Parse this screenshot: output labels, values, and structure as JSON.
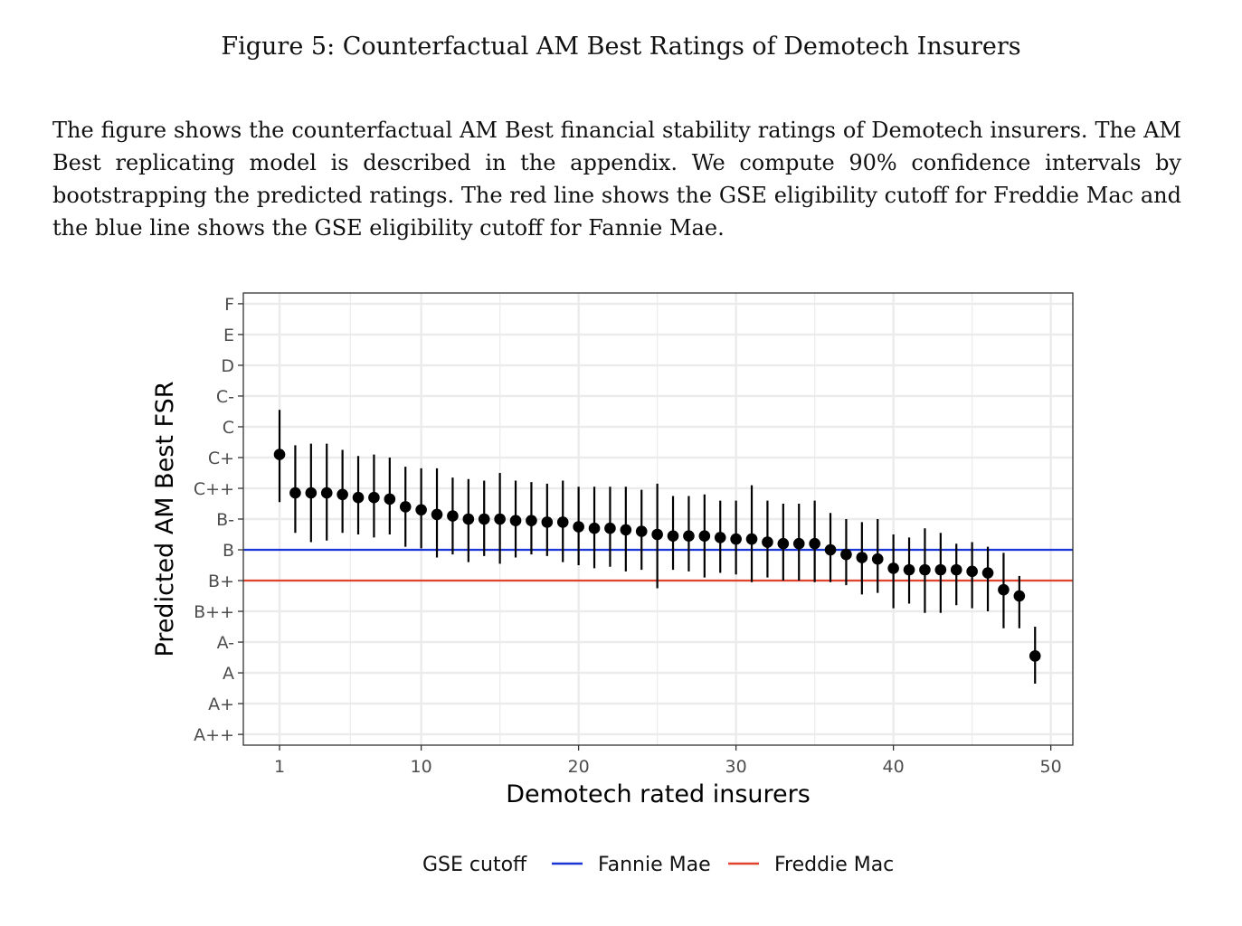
{
  "figure": {
    "title": "Figure 5: Counterfactual AM Best Ratings of Demotech Insurers",
    "caption": "The figure shows the counterfactual AM Best financial stability ratings of Demotech insurers. The AM Best replicating model is described in the appendix. We compute 90% confidence intervals by bootstrapping the predicted ratings. The red line shows the GSE eligibility cutoff for Freddie Mac and the blue line shows the GSE eligibility cutoff for Fannie Mae."
  },
  "chart_data": {
    "type": "scatter",
    "xlabel": "Demotech rated insurers",
    "ylabel": "Predicted AM Best FSR",
    "x_ticks": [
      1,
      10,
      20,
      30,
      40,
      50
    ],
    "xlim": [
      -1.3,
      51.4
    ],
    "y_categories": [
      "A++",
      "A+",
      "A",
      "A-",
      "B++",
      "B+",
      "B",
      "B-",
      "C++",
      "C+",
      "C",
      "C-",
      "D",
      "E",
      "F"
    ],
    "ylim": [
      -0.35,
      14.35
    ],
    "grid": true,
    "colors": {
      "point": "#000000",
      "fannie": "#1a35d4",
      "freddie": "#e0442e",
      "grid": "#ebebeb",
      "panel_border": "#333333"
    },
    "reference_lines": [
      {
        "name": "Fannie Mae",
        "y": 6,
        "color": "#1a35d4"
      },
      {
        "name": "Freddie Mac",
        "y": 5,
        "color": "#e0442e"
      }
    ],
    "legend": {
      "title": "GSE cutoff",
      "position": "bottom",
      "entries": [
        "Fannie Mae",
        "Freddie Mac"
      ]
    },
    "points": [
      {
        "x": 1,
        "y": 9.1,
        "lo": 7.55,
        "hi": 10.55
      },
      {
        "x": 2,
        "y": 7.85,
        "lo": 6.55,
        "hi": 9.4
      },
      {
        "x": 3,
        "y": 7.85,
        "lo": 6.25,
        "hi": 9.45
      },
      {
        "x": 4,
        "y": 7.85,
        "lo": 6.3,
        "hi": 9.45
      },
      {
        "x": 5,
        "y": 7.8,
        "lo": 6.55,
        "hi": 9.25
      },
      {
        "x": 6,
        "y": 7.7,
        "lo": 6.5,
        "hi": 9.05
      },
      {
        "x": 7,
        "y": 7.7,
        "lo": 6.4,
        "hi": 9.1
      },
      {
        "x": 8,
        "y": 7.65,
        "lo": 6.5,
        "hi": 9.0
      },
      {
        "x": 9,
        "y": 7.4,
        "lo": 6.1,
        "hi": 8.7
      },
      {
        "x": 10,
        "y": 7.3,
        "lo": 6.05,
        "hi": 8.65
      },
      {
        "x": 11,
        "y": 7.15,
        "lo": 5.75,
        "hi": 8.65
      },
      {
        "x": 12,
        "y": 7.1,
        "lo": 5.85,
        "hi": 8.35
      },
      {
        "x": 13,
        "y": 7.0,
        "lo": 5.6,
        "hi": 8.3
      },
      {
        "x": 14,
        "y": 7.0,
        "lo": 5.8,
        "hi": 8.25
      },
      {
        "x": 15,
        "y": 7.0,
        "lo": 5.55,
        "hi": 8.5
      },
      {
        "x": 16,
        "y": 6.95,
        "lo": 5.75,
        "hi": 8.25
      },
      {
        "x": 17,
        "y": 6.95,
        "lo": 5.85,
        "hi": 8.2
      },
      {
        "x": 18,
        "y": 6.9,
        "lo": 5.8,
        "hi": 8.15
      },
      {
        "x": 19,
        "y": 6.9,
        "lo": 5.6,
        "hi": 8.25
      },
      {
        "x": 20,
        "y": 6.75,
        "lo": 5.5,
        "hi": 8.05
      },
      {
        "x": 21,
        "y": 6.7,
        "lo": 5.4,
        "hi": 8.05
      },
      {
        "x": 22,
        "y": 6.7,
        "lo": 5.45,
        "hi": 8.05
      },
      {
        "x": 23,
        "y": 6.65,
        "lo": 5.3,
        "hi": 8.05
      },
      {
        "x": 24,
        "y": 6.6,
        "lo": 5.35,
        "hi": 7.95
      },
      {
        "x": 25,
        "y": 6.5,
        "lo": 4.75,
        "hi": 8.15
      },
      {
        "x": 26,
        "y": 6.45,
        "lo": 5.35,
        "hi": 7.75
      },
      {
        "x": 27,
        "y": 6.45,
        "lo": 5.3,
        "hi": 7.75
      },
      {
        "x": 28,
        "y": 6.45,
        "lo": 5.1,
        "hi": 7.8
      },
      {
        "x": 29,
        "y": 6.4,
        "lo": 5.25,
        "hi": 7.6
      },
      {
        "x": 30,
        "y": 6.35,
        "lo": 5.2,
        "hi": 7.6
      },
      {
        "x": 31,
        "y": 6.35,
        "lo": 4.95,
        "hi": 8.1
      },
      {
        "x": 32,
        "y": 6.25,
        "lo": 5.1,
        "hi": 7.6
      },
      {
        "x": 33,
        "y": 6.2,
        "lo": 5.0,
        "hi": 7.5
      },
      {
        "x": 34,
        "y": 6.2,
        "lo": 5.0,
        "hi": 7.5
      },
      {
        "x": 35,
        "y": 6.2,
        "lo": 4.95,
        "hi": 7.6
      },
      {
        "x": 36,
        "y": 6.0,
        "lo": 4.95,
        "hi": 7.2
      },
      {
        "x": 37,
        "y": 5.85,
        "lo": 4.85,
        "hi": 7.0
      },
      {
        "x": 38,
        "y": 5.75,
        "lo": 4.55,
        "hi": 6.9
      },
      {
        "x": 39,
        "y": 5.7,
        "lo": 4.6,
        "hi": 7.0
      },
      {
        "x": 40,
        "y": 5.4,
        "lo": 4.1,
        "hi": 6.5
      },
      {
        "x": 41,
        "y": 5.35,
        "lo": 4.25,
        "hi": 6.4
      },
      {
        "x": 42,
        "y": 5.35,
        "lo": 3.95,
        "hi": 6.7
      },
      {
        "x": 43,
        "y": 5.35,
        "lo": 3.95,
        "hi": 6.55
      },
      {
        "x": 44,
        "y": 5.35,
        "lo": 4.2,
        "hi": 6.2
      },
      {
        "x": 45,
        "y": 5.3,
        "lo": 4.1,
        "hi": 6.25
      },
      {
        "x": 46,
        "y": 5.25,
        "lo": 4.0,
        "hi": 6.1
      },
      {
        "x": 47,
        "y": 4.7,
        "lo": 3.45,
        "hi": 5.9
      },
      {
        "x": 48,
        "y": 4.5,
        "lo": 3.45,
        "hi": 5.15
      },
      {
        "x": 49,
        "y": 2.55,
        "lo": 1.65,
        "hi": 3.5
      }
    ]
  }
}
